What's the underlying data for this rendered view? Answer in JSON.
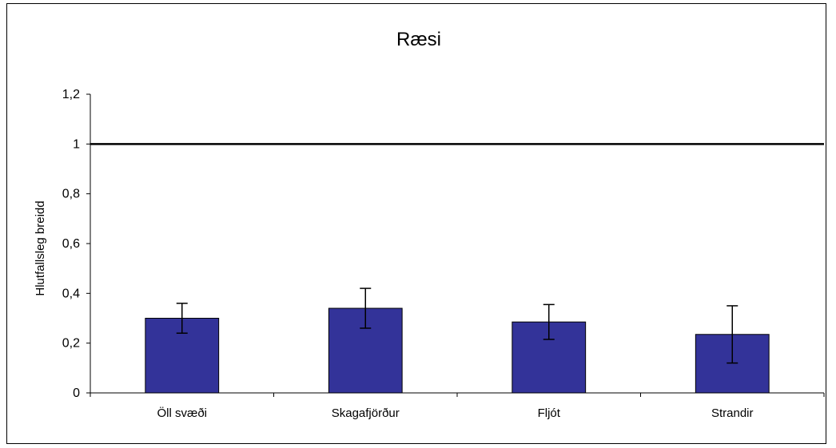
{
  "chart_data": {
    "type": "bar",
    "title": "Ræsi",
    "xlabel": "",
    "ylabel": "Hlutfallsleg breidd",
    "categories": [
      "Öll svæði",
      "Skagafjörður",
      "Fljót",
      "Strandir"
    ],
    "series": [
      {
        "values": [
          0.3,
          0.34,
          0.285,
          0.235
        ],
        "error": [
          0.06,
          0.08,
          0.07,
          0.115
        ],
        "color": "#333399"
      }
    ],
    "reference_line": 1,
    "ylim": [
      0,
      1.2
    ],
    "yticks": [
      0,
      0.2,
      0.4,
      0.6,
      0.8,
      1,
      1.2
    ],
    "ytick_labels": [
      "0",
      "0,2",
      "0,4",
      "0,6",
      "0,8",
      "1",
      "1,2"
    ],
    "grid": false,
    "legend": "none"
  }
}
